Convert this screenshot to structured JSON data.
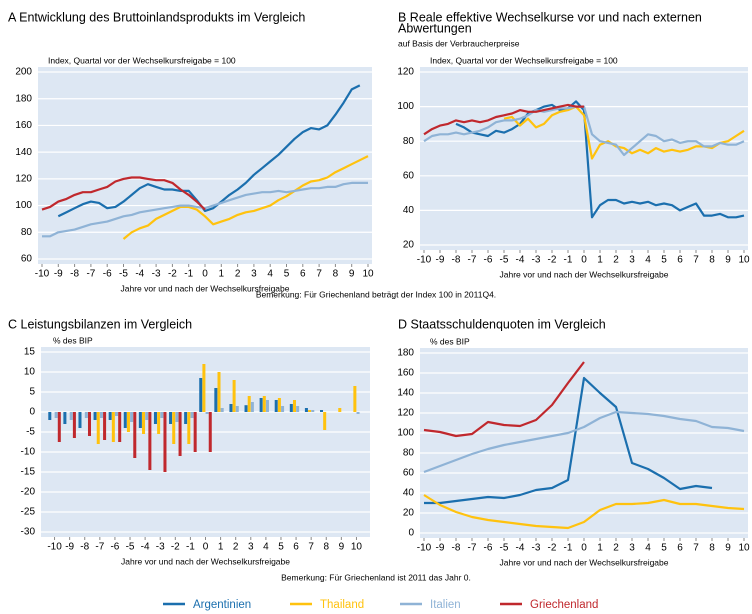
{
  "chart_data": [
    {
      "type": "line",
      "title": [
        "A  Entwicklung des Bruttoinlandsprodukts im Vergleich"
      ],
      "axis_note": "Index, Quartal vor der Wechselkursfreigabe = 100",
      "xlabel": "Jahre vor und nach der Wechselkursfreigabe",
      "xlim": [
        -10,
        10
      ],
      "ylim": [
        60,
        200
      ],
      "yticks": [
        60,
        80,
        100,
        120,
        140,
        160,
        180,
        200
      ],
      "xticks": [
        -10,
        -9,
        -8,
        -7,
        -6,
        -5,
        -4,
        -3,
        -2,
        -1,
        0,
        1,
        2,
        3,
        4,
        5,
        6,
        7,
        8,
        9,
        10
      ],
      "grid": true,
      "x": [
        -10,
        -9.5,
        -9,
        -8.5,
        -8,
        -7.5,
        -7,
        -6.5,
        -6,
        -5.5,
        -5,
        -4.5,
        -4,
        -3.5,
        -3,
        -2.5,
        -2,
        -1.5,
        -1,
        -0.5,
        0,
        0.5,
        1,
        1.5,
        2,
        2.5,
        3,
        3.5,
        4,
        4.5,
        5,
        5.5,
        6,
        6.5,
        7,
        7.5,
        8,
        8.5,
        9,
        9.5,
        10
      ],
      "series": [
        {
          "name": "Argentinien",
          "color": "#1b6fae",
          "values": [
            null,
            null,
            92,
            95,
            98,
            101,
            103,
            102,
            98,
            99,
            103,
            108,
            113,
            116,
            114,
            112,
            112,
            111,
            111,
            104,
            96,
            98,
            103,
            108,
            112,
            117,
            123,
            128,
            133,
            138,
            144,
            150,
            155,
            158,
            157,
            160,
            168,
            177,
            187,
            190,
            null
          ]
        },
        {
          "name": "Thailand",
          "color": "#ffc20e",
          "values": [
            null,
            null,
            null,
            null,
            null,
            null,
            null,
            null,
            null,
            null,
            75,
            80,
            83,
            85,
            90,
            93,
            96,
            99,
            99,
            97,
            92,
            86,
            88,
            90,
            93,
            95,
            96,
            98,
            100,
            104,
            107,
            111,
            115,
            118,
            119,
            121,
            125,
            128,
            131,
            134,
            137
          ]
        },
        {
          "name": "Italien",
          "color": "#8fb3d6",
          "values": [
            77,
            77,
            80,
            81,
            82,
            84,
            86,
            87,
            88,
            90,
            92,
            93,
            95,
            96,
            97,
            98,
            99,
            100,
            100,
            99,
            98,
            100,
            102,
            104,
            106,
            108,
            109,
            110,
            110,
            111,
            110,
            111,
            112,
            113,
            113,
            114,
            114,
            116,
            117,
            117,
            117
          ]
        },
        {
          "name": "Griechenland",
          "color": "#c0282d",
          "values": [
            97,
            99,
            103,
            105,
            108,
            110,
            110,
            112,
            114,
            118,
            120,
            121,
            121,
            120,
            119,
            119,
            117,
            112,
            108,
            103,
            97,
            null,
            null,
            null,
            null,
            null,
            null,
            null,
            null,
            null,
            null,
            null,
            null,
            null,
            null,
            null,
            null,
            null,
            null,
            null,
            null
          ]
        }
      ]
    },
    {
      "type": "line",
      "title": [
        "B  Reale effektive Wechselkurse vor und nach externen",
        "Abwertungen"
      ],
      "subtitle": "auf Basis der Verbraucherpreise",
      "axis_note": "Index, Quartal vor der Wechselkursfreigabe = 100",
      "xlabel": "Jahre vor und nach der Wechselkursfreigabe",
      "xlim": [
        -10,
        10
      ],
      "ylim": [
        20,
        120
      ],
      "yticks": [
        20,
        40,
        60,
        80,
        100,
        120
      ],
      "xticks": [
        -10,
        -9,
        -8,
        -7,
        -6,
        -5,
        -4,
        -3,
        -2,
        -1,
        0,
        1,
        2,
        3,
        4,
        5,
        6,
        7,
        8,
        9,
        10
      ],
      "grid": true,
      "x": [
        -10,
        -9.5,
        -9,
        -8.5,
        -8,
        -7.5,
        -7,
        -6.5,
        -6,
        -5.5,
        -5,
        -4.5,
        -4,
        -3.5,
        -3,
        -2.5,
        -2,
        -1.5,
        -1,
        -0.5,
        0,
        0.5,
        1,
        1.5,
        2,
        2.5,
        3,
        3.5,
        4,
        4.5,
        5,
        5.5,
        6,
        6.5,
        7,
        7.5,
        8,
        8.5,
        9,
        9.5,
        10
      ],
      "series": [
        {
          "name": "Argentinien",
          "color": "#1b6fae",
          "values": [
            null,
            null,
            null,
            null,
            90,
            88,
            85,
            84,
            83,
            86,
            85,
            87,
            90,
            96,
            98,
            100,
            101,
            98,
            99,
            103,
            98,
            36,
            43,
            46,
            46,
            44,
            45,
            44,
            45,
            43,
            44,
            43,
            40,
            42,
            44,
            37,
            37,
            38,
            36,
            36,
            37
          ]
        },
        {
          "name": "Thailand",
          "color": "#ffc20e",
          "values": [
            null,
            null,
            null,
            null,
            null,
            null,
            null,
            null,
            null,
            null,
            93,
            94,
            89,
            93,
            88,
            90,
            95,
            97,
            98,
            100,
            95,
            70,
            78,
            80,
            77,
            76,
            73,
            75,
            73,
            76,
            74,
            75,
            74,
            75,
            77,
            77,
            76,
            79,
            80,
            83,
            86
          ]
        },
        {
          "name": "Italien",
          "color": "#8fb3d6",
          "values": [
            80,
            83,
            84,
            84,
            85,
            84,
            85,
            86,
            88,
            91,
            92,
            92,
            93,
            95,
            98,
            97,
            98,
            99,
            99,
            100,
            100,
            84,
            80,
            79,
            78,
            72,
            76,
            80,
            84,
            83,
            80,
            81,
            79,
            80,
            80,
            77,
            77,
            79,
            78,
            78,
            80
          ]
        },
        {
          "name": "Griechenland",
          "color": "#c0282d",
          "values": [
            84,
            87,
            89,
            90,
            92,
            91,
            92,
            91,
            92,
            94,
            95,
            96,
            98,
            97,
            97,
            98,
            99,
            100,
            101,
            100,
            100,
            null,
            null,
            null,
            null,
            null,
            null,
            null,
            null,
            null,
            null,
            null,
            null,
            null,
            null,
            null,
            null,
            null,
            null,
            null,
            null
          ]
        }
      ]
    },
    {
      "type": "bar",
      "title": [
        "C  Leistungsbilanzen im Vergleich"
      ],
      "axis_note": "% des BIP",
      "xlabel": "Jahre vor und nach der Wechselkursfreigabe",
      "xlim": [
        -10.5,
        10.5
      ],
      "ylim": [
        -30,
        15
      ],
      "yticks": [
        -30,
        -25,
        -20,
        -15,
        -10,
        -5,
        0,
        5,
        10,
        15
      ],
      "xticks": [
        -10,
        -9,
        -8,
        -7,
        -6,
        -5,
        -4,
        -3,
        -2,
        -1,
        0,
        1,
        2,
        3,
        4,
        5,
        6,
        7,
        8,
        9,
        10
      ],
      "grid": true,
      "x": [
        -10,
        -9,
        -8,
        -7,
        -6,
        -5,
        -4,
        -3,
        -2,
        -1,
        0,
        1,
        2,
        3,
        4,
        5,
        6,
        7,
        8,
        9,
        10
      ],
      "series": [
        {
          "name": "Argentinien",
          "color": "#1b6fae",
          "values": [
            -2,
            -3,
            -4,
            -2,
            -2,
            -4,
            -4,
            -3,
            -3,
            -3,
            8.5,
            6,
            2,
            1.7,
            3.5,
            3,
            2,
            1,
            0.5,
            null,
            null
          ]
        },
        {
          "name": "Thailand",
          "color": "#ffc20e",
          "values": [
            null,
            null,
            null,
            -8,
            -7.5,
            -5,
            -5.5,
            -5.5,
            -8,
            -8,
            12,
            10,
            8,
            4,
            4,
            3.5,
            3,
            0.5,
            -4.5,
            1,
            6.5
          ]
        },
        {
          "name": "Italien",
          "color": "#8fb3d6",
          "values": [
            -1.5,
            -2,
            -1.5,
            -1.5,
            -1,
            -2.5,
            -2,
            -1.5,
            -2.5,
            -1.5,
            -0.5,
            1,
            1.5,
            2.5,
            3,
            1.5,
            1.5,
            0.5,
            null,
            null,
            -0.5
          ]
        },
        {
          "name": "Griechenland",
          "color": "#c0282d",
          "values": [
            -7.5,
            -6.5,
            -6,
            -7,
            -7.5,
            -11.5,
            -14.5,
            -15,
            -11,
            -10,
            -10,
            null,
            null,
            null,
            null,
            null,
            null,
            null,
            null,
            null,
            null
          ]
        }
      ]
    },
    {
      "type": "line",
      "title": [
        "D  Staatsschuldenquoten im Vergleich"
      ],
      "axis_note": "% des BIP",
      "xlabel": "Jahre vor und nach der Wechselkursfreigabe",
      "xlim": [
        -10,
        10
      ],
      "ylim": [
        0,
        180
      ],
      "yticks": [
        0,
        20,
        40,
        60,
        80,
        100,
        120,
        140,
        160,
        180
      ],
      "xticks": [
        -10,
        -9,
        -8,
        -7,
        -6,
        -5,
        -4,
        -3,
        -2,
        -1,
        0,
        1,
        2,
        3,
        4,
        5,
        6,
        7,
        8,
        9,
        10
      ],
      "grid": true,
      "x": [
        -10,
        -9,
        -8,
        -7,
        -6,
        -5,
        -4,
        -3,
        -2,
        -1,
        0,
        1,
        2,
        3,
        4,
        5,
        6,
        7,
        8,
        9,
        10
      ],
      "series": [
        {
          "name": "Argentinien",
          "color": "#1b6fae",
          "values": [
            30,
            30,
            32,
            34,
            36,
            35,
            38,
            43,
            45,
            53,
            155,
            140,
            126,
            70,
            64,
            55,
            44,
            47,
            45,
            null,
            null
          ]
        },
        {
          "name": "Thailand",
          "color": "#ffc20e",
          "values": [
            38,
            28,
            21,
            16,
            13,
            11,
            9,
            7,
            6,
            5,
            11,
            23,
            29,
            29,
            30,
            33,
            29,
            29,
            27,
            25,
            24
          ]
        },
        {
          "name": "Italien",
          "color": "#8fb3d6",
          "values": [
            61,
            67,
            73,
            79,
            84,
            88,
            91,
            94,
            97,
            100,
            106,
            115,
            121,
            120,
            119,
            117,
            114,
            112,
            106,
            105,
            102
          ]
        },
        {
          "name": "Griechenland",
          "color": "#c0282d",
          "values": [
            103,
            101,
            97,
            99,
            111,
            108,
            107,
            113,
            128,
            150,
            171,
            null,
            null,
            null,
            null,
            null,
            null,
            null,
            null,
            null,
            null
          ]
        }
      ]
    }
  ],
  "notes": [
    "Bemerkung: Für Griechenland beträgt der Index 100 in 2011Q4.",
    "Bemerkung: Für Griechenland ist 2011 das Jahr 0."
  ]
}
